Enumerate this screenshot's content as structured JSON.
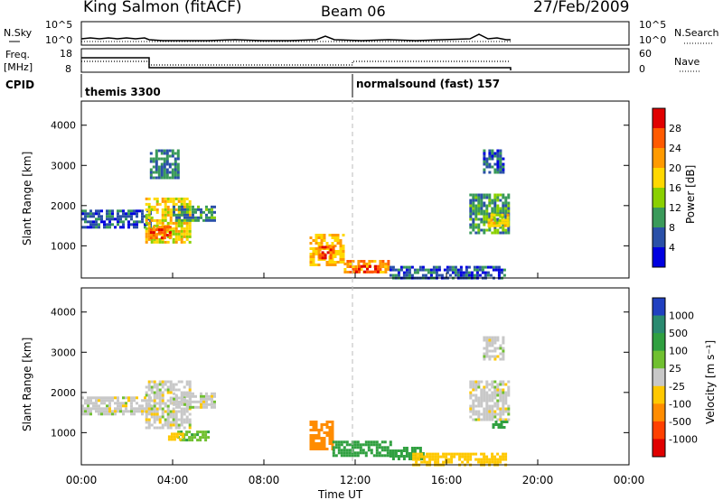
{
  "header": {
    "title": "King Salmon (fitACF)",
    "beam": "Beam 06",
    "date": "27/Feb/2009"
  },
  "nsky_panel": {
    "left_label": "N.Sky",
    "right_label": "N.Search",
    "left_ticks": [
      "10^5",
      "10^0"
    ],
    "right_ticks": [
      "10^5",
      "10^0"
    ]
  },
  "freq_panel": {
    "left_label_line1": "Freq.",
    "left_label_line2": "[MHz]",
    "left_ticks": [
      "18",
      "8"
    ],
    "right_label": "Nave",
    "right_ticks": [
      "60",
      "0"
    ]
  },
  "cpid_panel": {
    "label": "CPID",
    "modes": [
      {
        "name": "themis 3300",
        "start_hour": 0
      },
      {
        "name": "normalsound (fast) 157",
        "start_hour": 12
      }
    ]
  },
  "x_axis": {
    "label": "Time UT",
    "ticks": [
      "00:00",
      "04:00",
      "08:00",
      "12:00",
      "16:00",
      "20:00",
      "00:00"
    ],
    "tick_hours": [
      0,
      4,
      8,
      12,
      16,
      20,
      24
    ],
    "range": [
      0,
      24
    ]
  },
  "power_colorbar": {
    "label": "Power [dB]",
    "ticks": [
      "28",
      "24",
      "20",
      "16",
      "12",
      "8",
      "4"
    ],
    "colors": [
      "#e00000",
      "#ff5a00",
      "#ff9a00",
      "#ffd800",
      "#8ad000",
      "#3a9a5a",
      "#2a50a8",
      "#0000e0"
    ]
  },
  "velocity_colorbar": {
    "label": "Velocity [m s⁻¹]",
    "ticks": [
      "1000",
      "500",
      "100",
      "25",
      "-25",
      "-100",
      "-500",
      "-1000"
    ],
    "colors": [
      "#2040c0",
      "#2a8a70",
      "#30a040",
      "#70c030",
      "#c8c8c8",
      "#ffc800",
      "#ff8c00",
      "#ff4000",
      "#e00000"
    ]
  },
  "chart_data": [
    {
      "type": "heatmap",
      "name": "power",
      "ylabel": "Slant Range [km]",
      "yticks": [
        "4000",
        "3000",
        "2000",
        "1000"
      ],
      "ylim": [
        200,
        4600
      ],
      "xlim": [
        0,
        24
      ],
      "blobs": [
        {
          "t0": 0.0,
          "t1": 3.0,
          "r0": 1450,
          "r1": 1900,
          "power": 6
        },
        {
          "t0": 2.8,
          "t1": 4.8,
          "r0": 1100,
          "r1": 2200,
          "power": 18
        },
        {
          "t0": 3.0,
          "t1": 3.9,
          "r0": 1200,
          "r1": 1500,
          "power": 26
        },
        {
          "t0": 4.0,
          "t1": 5.8,
          "r0": 1600,
          "r1": 2000,
          "power": 9
        },
        {
          "t0": 3.0,
          "t1": 4.2,
          "r0": 2700,
          "r1": 3400,
          "power": 8
        },
        {
          "t0": 10.0,
          "t1": 11.5,
          "r0": 500,
          "r1": 1300,
          "power": 20
        },
        {
          "t0": 10.4,
          "t1": 11.0,
          "r0": 700,
          "r1": 1000,
          "power": 27
        },
        {
          "t0": 11.5,
          "t1": 13.5,
          "r0": 350,
          "r1": 650,
          "power": 22
        },
        {
          "t0": 12.0,
          "t1": 13.0,
          "r0": 380,
          "r1": 520,
          "power": 28
        },
        {
          "t0": 13.5,
          "t1": 18.6,
          "r0": 220,
          "r1": 500,
          "power": 6
        },
        {
          "t0": 17.0,
          "t1": 18.7,
          "r0": 1300,
          "r1": 2300,
          "power": 10
        },
        {
          "t0": 17.8,
          "t1": 18.7,
          "r0": 1500,
          "r1": 1800,
          "power": 18
        },
        {
          "t0": 17.6,
          "t1": 18.5,
          "r0": 2800,
          "r1": 3400,
          "power": 6
        }
      ]
    },
    {
      "type": "heatmap",
      "name": "velocity",
      "ylabel": "Slant Range [km]",
      "yticks": [
        "4000",
        "3000",
        "2000",
        "1000"
      ],
      "ylim": [
        200,
        4600
      ],
      "xlim": [
        0,
        24
      ],
      "blobs": [
        {
          "t0": 0.0,
          "t1": 3.0,
          "r0": 1450,
          "r1": 1900,
          "velocity": 0
        },
        {
          "t0": 2.8,
          "t1": 4.8,
          "r0": 1100,
          "r1": 2300,
          "velocity": 0
        },
        {
          "t0": 4.0,
          "t1": 5.8,
          "r0": 1600,
          "r1": 2000,
          "velocity": 0
        },
        {
          "t0": 4.2,
          "t1": 5.6,
          "r0": 800,
          "r1": 1050,
          "velocity": 80
        },
        {
          "t0": 3.8,
          "t1": 4.4,
          "r0": 850,
          "r1": 1000,
          "velocity": -80
        },
        {
          "t0": 10.0,
          "t1": 11.0,
          "r0": 600,
          "r1": 1300,
          "velocity": -300
        },
        {
          "t0": 11.0,
          "t1": 13.5,
          "r0": 400,
          "r1": 800,
          "velocity": 200
        },
        {
          "t0": 13.5,
          "t1": 15.0,
          "r0": 350,
          "r1": 650,
          "velocity": 400
        },
        {
          "t0": 14.5,
          "t1": 18.6,
          "r0": 220,
          "r1": 500,
          "velocity": -60
        },
        {
          "t0": 17.0,
          "t1": 18.7,
          "r0": 1300,
          "r1": 2300,
          "velocity": 0
        },
        {
          "t0": 18.0,
          "t1": 18.6,
          "r0": 1100,
          "r1": 1300,
          "velocity": 300
        },
        {
          "t0": 17.6,
          "t1": 18.5,
          "r0": 2800,
          "r1": 3400,
          "velocity": 0
        }
      ]
    }
  ]
}
